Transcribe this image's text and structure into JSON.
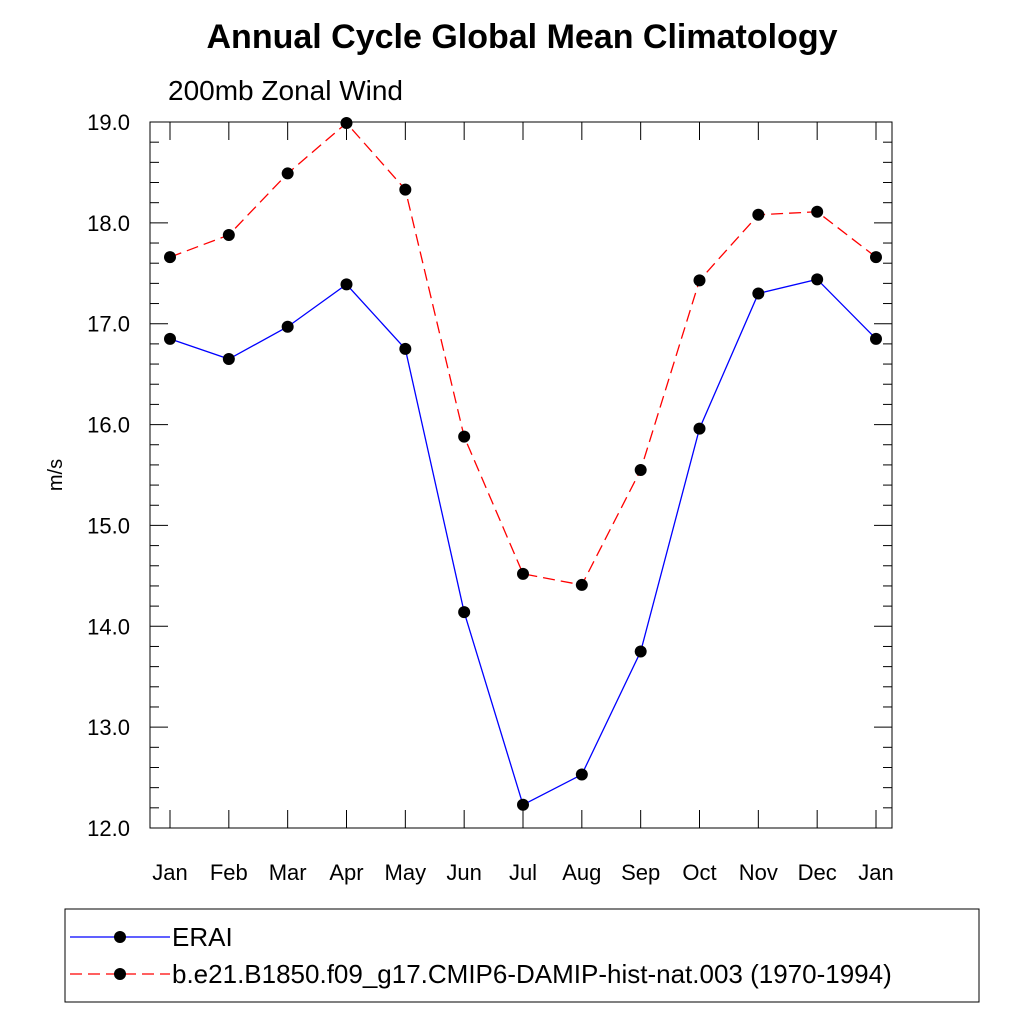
{
  "chart_data": {
    "type": "line",
    "title": "Annual Cycle Global Mean Climatology",
    "subtitle": "200mb Zonal Wind",
    "xlabel": "",
    "ylabel": "m/s",
    "categories": [
      "Jan",
      "Feb",
      "Mar",
      "Apr",
      "May",
      "Jun",
      "Jul",
      "Aug",
      "Sep",
      "Oct",
      "Nov",
      "Dec",
      "Jan"
    ],
    "ylim": [
      12.0,
      19.0
    ],
    "yticks": [
      "12.0",
      "13.0",
      "14.0",
      "15.0",
      "16.0",
      "17.0",
      "18.0",
      "19.0"
    ],
    "grid": false,
    "legend_position": "bottom",
    "series": [
      {
        "name": "ERAI",
        "color": "#0000ff",
        "dash": "solid",
        "marker": "filled-circle",
        "values": [
          16.85,
          16.65,
          16.97,
          17.39,
          16.75,
          14.14,
          12.23,
          12.53,
          13.75,
          15.96,
          17.3,
          17.44,
          16.85
        ]
      },
      {
        "name": "b.e21.B1850.f09_g17.CMIP6-DAMIP-hist-nat.003 (1970-1994)",
        "color": "#ff0000",
        "dash": "dashed",
        "marker": "filled-circle",
        "values": [
          17.66,
          17.88,
          18.49,
          18.99,
          18.33,
          15.88,
          14.52,
          14.41,
          15.55,
          17.43,
          18.08,
          18.11,
          17.66
        ]
      }
    ]
  }
}
